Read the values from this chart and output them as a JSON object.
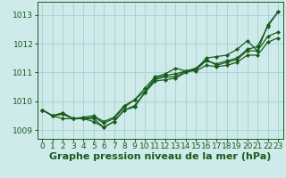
{
  "xlabel": "Graphe pression niveau de la mer (hPa)",
  "bg_color": "#ceeaea",
  "grid_color": "#aad4d4",
  "line_color": "#1a5c1a",
  "xlim": [
    -0.5,
    23.5
  ],
  "ylim": [
    1008.7,
    1013.45
  ],
  "yticks": [
    1009,
    1010,
    1011,
    1012,
    1013
  ],
  "xticks": [
    0,
    1,
    2,
    3,
    4,
    5,
    6,
    7,
    8,
    9,
    10,
    11,
    12,
    13,
    14,
    15,
    16,
    17,
    18,
    19,
    20,
    21,
    22,
    23
  ],
  "series": [
    [
      1009.7,
      1009.5,
      1009.6,
      1009.4,
      1009.4,
      1009.4,
      1009.1,
      1009.3,
      1009.7,
      1009.85,
      1010.3,
      1010.75,
      1010.85,
      1010.85,
      1011.05,
      1011.1,
      1011.5,
      1011.55,
      1011.6,
      1011.8,
      1012.1,
      1011.75,
      1012.65,
      1013.1
    ],
    [
      1009.7,
      1009.5,
      1009.55,
      1009.4,
      1009.4,
      1009.45,
      1009.25,
      1009.4,
      1009.8,
      1010.05,
      1010.35,
      1010.8,
      1010.9,
      1010.95,
      1011.05,
      1011.05,
      1011.25,
      1011.2,
      1011.25,
      1011.35,
      1011.6,
      1011.6,
      1012.05,
      1012.2
    ],
    [
      1009.7,
      1009.5,
      1009.6,
      1009.4,
      1009.45,
      1009.5,
      1009.3,
      1009.45,
      1009.85,
      1010.05,
      1010.45,
      1010.85,
      1010.95,
      1011.15,
      1011.05,
      1011.15,
      1011.45,
      1011.25,
      1011.35,
      1011.45,
      1011.75,
      1011.75,
      1012.25,
      1012.4
    ],
    [
      1009.7,
      1009.5,
      1009.4,
      1009.4,
      1009.4,
      1009.3,
      1009.1,
      1009.3,
      1009.7,
      1009.8,
      1010.3,
      1010.7,
      1010.75,
      1010.8,
      1011.0,
      1011.1,
      1011.4,
      1011.3,
      1011.4,
      1011.5,
      1011.8,
      1011.9,
      1012.6,
      1013.1
    ]
  ],
  "marker": "D",
  "markersize": 2.2,
  "linewidth": 0.9,
  "xlabel_fontsize": 8,
  "tick_fontsize": 6.5
}
